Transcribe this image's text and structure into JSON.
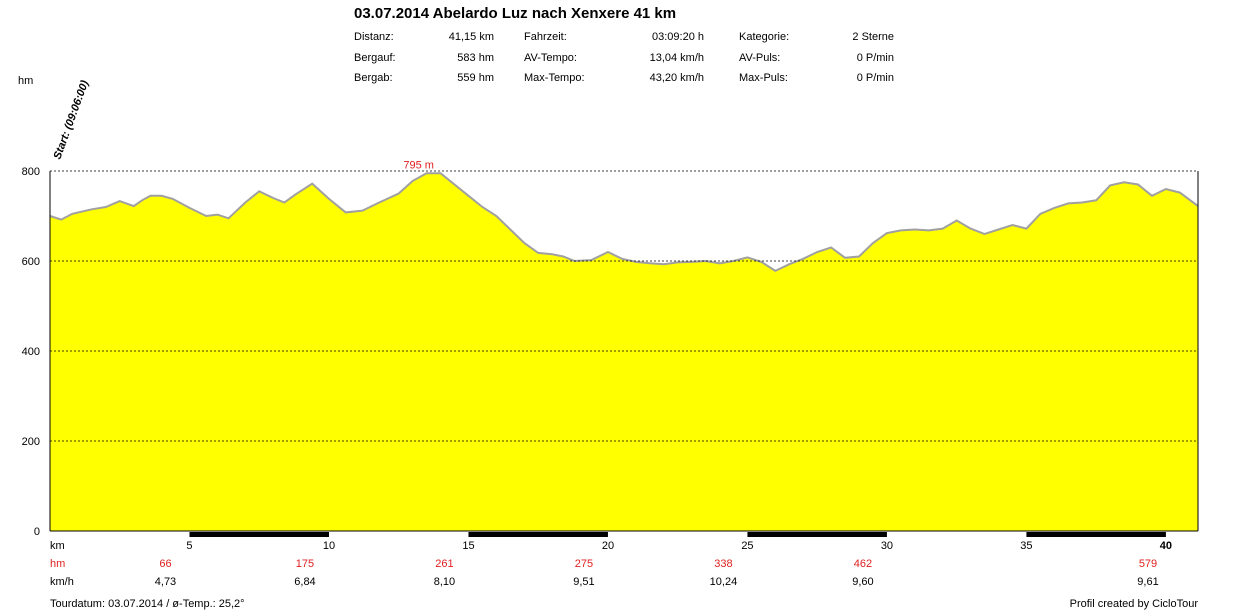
{
  "title": "03.07.2014 Abelardo Luz nach Xenxere 41 km",
  "stats": [
    {
      "label": "Distanz:",
      "value": "41,15 km"
    },
    {
      "label": "Bergauf:",
      "value": "583 hm"
    },
    {
      "label": "Bergab:",
      "value": "559 hm"
    },
    {
      "label": "Fahrzeit:",
      "value": "03:09:20 h"
    },
    {
      "label": "AV-Tempo:",
      "value": "13,04 km/h"
    },
    {
      "label": "Max-Tempo:",
      "value": "43,20 km/h"
    },
    {
      "label": "Kategorie:",
      "value": "2 Sterne"
    },
    {
      "label": "AV-Puls:",
      "value": "0 P/min"
    },
    {
      "label": "Max-Puls:",
      "value": "0 P/min"
    }
  ],
  "start_label": "Start: (09:06:00)",
  "max_label": "795 m",
  "row_labels": {
    "km": "km",
    "hm": "hm",
    "kmh": "km/h"
  },
  "footer": {
    "left": "Tourdatum: 03.07.2014  /  ø-Temp.: 25,2°",
    "right": "Profil created by CicloTour"
  },
  "colors": {
    "fill": "#ffff00",
    "line": "#a0a0a0",
    "accent": "#e02020",
    "axis": "#000000"
  },
  "chart_data": {
    "type": "area",
    "ylabel": "hm",
    "xlabel": "km",
    "xlim": [
      0,
      41.15
    ],
    "ylim": [
      0,
      800
    ],
    "yticks": [
      0,
      200,
      400,
      600,
      800
    ],
    "xticks": [
      5,
      10,
      15,
      20,
      25,
      30,
      35,
      40
    ],
    "grid": true,
    "max_elevation": 795,
    "x": [
      0,
      0.4,
      0.8,
      1.5,
      2.0,
      2.5,
      3.0,
      3.3,
      3.6,
      4.0,
      4.4,
      5.0,
      5.6,
      6.0,
      6.4,
      7.0,
      7.5,
      8.0,
      8.4,
      8.8,
      9.4,
      10.0,
      10.6,
      11.2,
      11.8,
      12.5,
      13.0,
      13.5,
      14.0,
      14.5,
      15.0,
      15.5,
      16.0,
      16.5,
      17.0,
      17.5,
      18.0,
      18.4,
      18.8,
      19.4,
      20.0,
      20.5,
      21.0,
      21.5,
      22.0,
      22.5,
      23.0,
      23.5,
      24.0,
      24.5,
      25.0,
      25.5,
      26.0,
      26.5,
      27.0,
      27.5,
      28.0,
      28.5,
      29.0,
      29.5,
      30.0,
      30.5,
      31.0,
      31.5,
      32.0,
      32.5,
      33.0,
      33.5,
      34.0,
      34.5,
      35.0,
      35.5,
      36.0,
      36.5,
      37.0,
      37.5,
      38.0,
      38.5,
      39.0,
      39.5,
      40.0,
      40.5,
      41.15
    ],
    "y": [
      700,
      692,
      705,
      715,
      720,
      733,
      722,
      735,
      745,
      745,
      738,
      718,
      700,
      703,
      695,
      730,
      755,
      740,
      730,
      748,
      772,
      738,
      708,
      712,
      730,
      750,
      778,
      795,
      795,
      770,
      745,
      720,
      700,
      670,
      640,
      618,
      615,
      610,
      600,
      602,
      620,
      605,
      598,
      595,
      593,
      597,
      598,
      600,
      595,
      600,
      608,
      598,
      578,
      593,
      605,
      620,
      630,
      607,
      610,
      640,
      662,
      668,
      670,
      668,
      672,
      690,
      672,
      660,
      670,
      680,
      672,
      705,
      718,
      728,
      730,
      735,
      768,
      775,
      770,
      745,
      760,
      752,
      722
    ]
  },
  "distance_segments": [
    {
      "km": "5",
      "hm": "66",
      "kmh": "4,73"
    },
    {
      "km": "10",
      "hm": "175",
      "kmh": "6,84"
    },
    {
      "km": "15",
      "hm": "261",
      "kmh": "8,10"
    },
    {
      "km": "20",
      "hm": "275",
      "kmh": "9,51"
    },
    {
      "km": "25",
      "hm": "338",
      "kmh": "10,24"
    },
    {
      "km": "30",
      "hm": "462",
      "kmh": "9,60"
    },
    {
      "km": "40",
      "hm": "579",
      "kmh": "9,61"
    }
  ]
}
